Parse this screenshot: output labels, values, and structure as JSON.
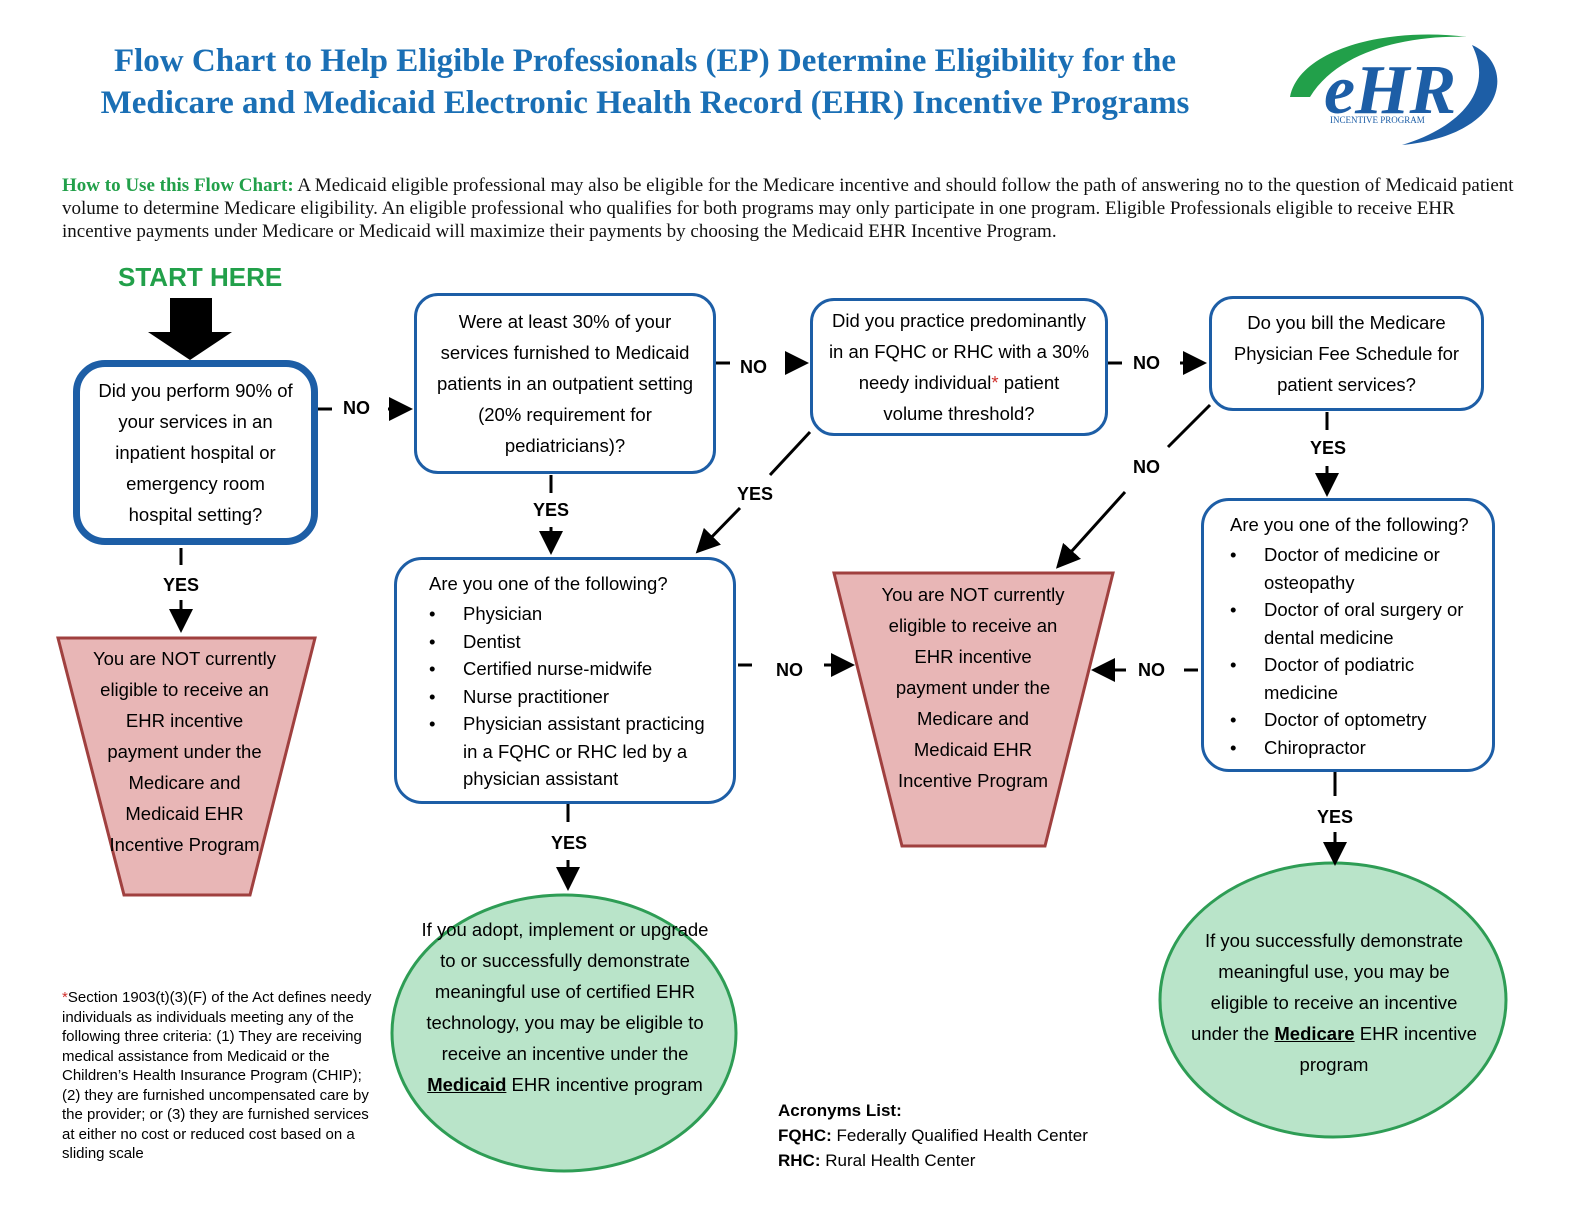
{
  "title": {
    "line1": "Flow Chart to Help Eligible Professionals (EP) Determine Eligibility for the",
    "line2": "Medicare and Medicaid Electronic Health Record (EHR) Incentive Programs"
  },
  "logo": {
    "letters": "eHR",
    "tagline": "INCENTIVE PROGRAM"
  },
  "intro": {
    "lead": "How to Use this Flow Chart:",
    "text": " A Medicaid eligible professional may also be eligible for the Medicare incentive and should follow the path of answering no to the question of Medicaid patient volume to determine Medicare eligibility.  An eligible professional who qualifies for both programs may only participate in one program.  Eligible Professionals eligible to receive EHR incentive payments under Medicare or Medicaid will maximize their payments by choosing the Medicaid EHR Incentive Program."
  },
  "start_label": "START HERE",
  "q1": "Did you perform 90% of your services in an inpatient hospital or emergency room hospital setting?",
  "q2": "Were at least 30% of your services furnished to Medicaid patients in an outpatient setting (20% requirement for pediatricians)?",
  "q3": {
    "before": "Did you practice predominantly in an FQHC or RHC with a 30% needy individual",
    "star": "*",
    "after": " patient volume threshold?"
  },
  "q4": "Do you bill the Medicare Physician Fee Schedule for patient services?",
  "q5": {
    "question": "Are you one of the following?",
    "items": [
      "Physician",
      "Dentist",
      "Certified nurse-midwife",
      "Nurse practitioner",
      "Physician assistant practicing in a FQHC or RHC led by a physician assistant"
    ]
  },
  "q6": {
    "question": "Are you one of the following?",
    "items": [
      "Doctor of medicine or osteopathy",
      "Doctor of oral surgery or dental medicine",
      "Doctor of podiatric medicine",
      "Doctor of optometry",
      "Chiropractor"
    ]
  },
  "not_eligible": "You are NOT currently eligible to receive an EHR incentive payment under the Medicare and Medicaid EHR Incentive Program",
  "medicaid_result": {
    "before": "If you adopt, implement or upgrade to or successfully demonstrate meaningful use of certified EHR technology, you may be eligible to receive an incentive under the ",
    "program": "Medicaid",
    "after": " EHR incentive program"
  },
  "medicare_result": {
    "before": "If you successfully demonstrate meaningful use, you may be eligible to receive an incentive under the ",
    "program": "Medicare",
    "after": " EHR incentive program"
  },
  "labels": {
    "yes": "YES",
    "no": "NO"
  },
  "footnote": {
    "star": "*",
    "text": "Section 1903(t)(3)(F) of the Act defines needy individuals as individuals meeting any of the following three criteria: (1) They are receiving medical assistance from Medicaid or the Children’s Health Insurance Program (CHIP); (2) they are furnished uncompensated care by the provider; or (3) they are furnished services at either no cost or reduced cost based on a sliding scale"
  },
  "acronyms": {
    "heading": "Acronyms List:",
    "items": [
      {
        "abbr": "FQHC:",
        "meaning": " Federally Qualified Health Center"
      },
      {
        "abbr": "RHC:",
        "meaning": " Rural Health Center"
      }
    ]
  },
  "colors": {
    "title": "#1a6fb5",
    "box_border": "#1d5ea6",
    "green_text": "#22a04a",
    "trap_fill": "#e8b6b6",
    "trap_border": "#a0403f",
    "oval_fill": "#b9e4c9",
    "oval_border": "#2e9d55"
  }
}
